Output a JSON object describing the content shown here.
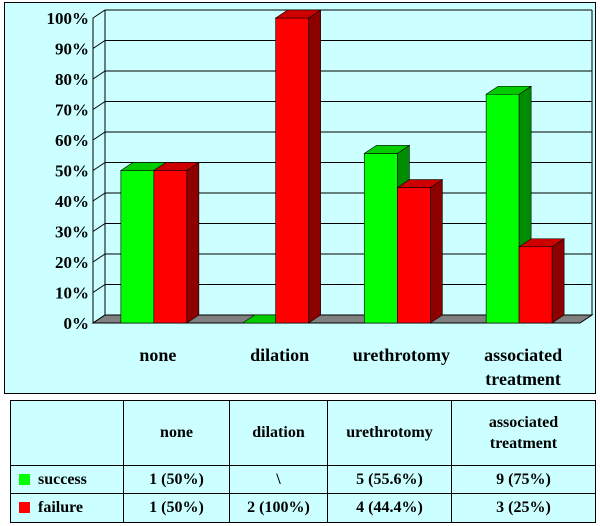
{
  "chart_data": {
    "type": "bar",
    "categories": [
      "none",
      "dilation",
      "urethrotomy",
      "associated treatment"
    ],
    "series": [
      {
        "name": "success",
        "values": [
          50,
          0,
          55.6,
          75
        ],
        "color": "#00ff00"
      },
      {
        "name": "failure",
        "values": [
          50,
          100,
          44.4,
          25
        ],
        "color": "#ff0000"
      }
    ],
    "y_ticks": [
      "0%",
      "10%",
      "20%",
      "30%",
      "40%",
      "50%",
      "60%",
      "70%",
      "80%",
      "90%",
      "100%"
    ],
    "ylim": [
      0,
      100
    ],
    "grid": true,
    "style": "3d"
  },
  "table": {
    "headers": [
      "",
      "none",
      "dilation",
      "urethrotomy",
      "associated treatment"
    ],
    "rows": [
      {
        "label": "success",
        "color": "#00ff00",
        "cells": [
          "1 (50%)",
          "\\",
          "5 (55.6%)",
          "9 (75%)"
        ]
      },
      {
        "label": "failure",
        "color": "#ff0000",
        "cells": [
          "1 (50%)",
          "2 (100%)",
          "4 (44.4%)",
          "3 (25%)"
        ]
      }
    ]
  },
  "colors": {
    "background": "#ccffff",
    "floor": "#808080"
  }
}
